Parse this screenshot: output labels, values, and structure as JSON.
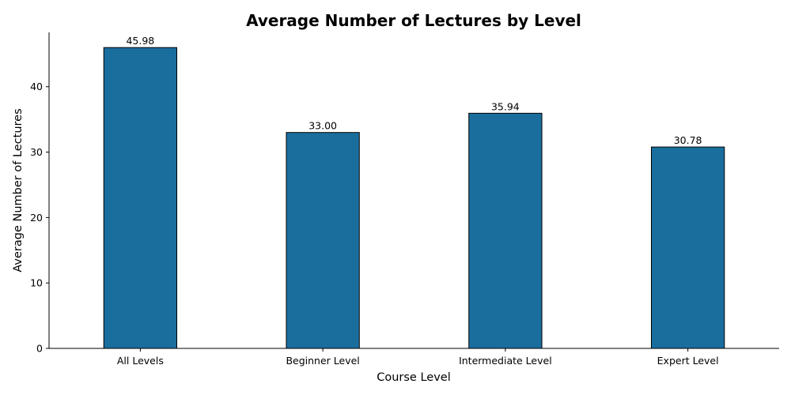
{
  "chart_data": {
    "type": "bar",
    "title": "Average Number of Lectures by Level",
    "xlabel": "Course Level",
    "ylabel": "Average Number of Lectures",
    "categories": [
      "All Levels",
      "Beginner Level",
      "Intermediate Level",
      "Expert Level"
    ],
    "values": [
      45.98,
      33.0,
      35.94,
      30.78
    ],
    "value_labels": [
      "45.98",
      "33.00",
      "35.94",
      "30.78"
    ],
    "ylim": [
      0,
      48.3
    ],
    "yticks": [
      0,
      10,
      20,
      30,
      40
    ],
    "bar_color": "#1a6e9e",
    "grid": false,
    "legend": "none"
  }
}
